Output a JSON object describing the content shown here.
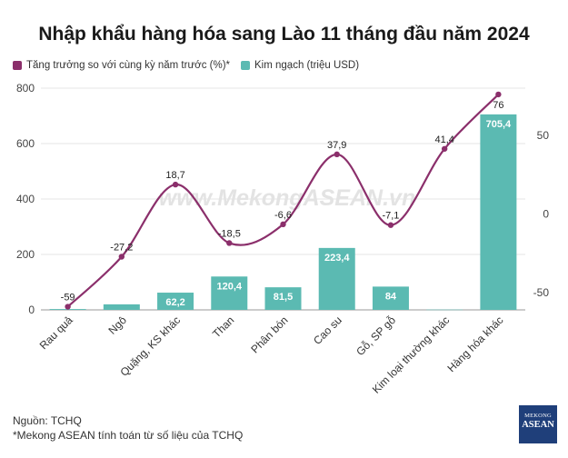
{
  "title": "Nhập khẩu hàng hóa sang Lào 11 tháng đầu năm 2024",
  "legend": [
    {
      "label": "Tăng trưởng so với cùng kỳ năm trước (%)*",
      "color": "#8b2f6b"
    },
    {
      "label": "Kim ngạch (triệu USD)",
      "color": "#5bbab2"
    }
  ],
  "watermark": "www.MekongASEAN.vn",
  "source": "Nguồn: TCHQ",
  "note": "*Mekong ASEAN tính toán từ số liệu của TCHQ",
  "logo": {
    "line1": "MEKONG",
    "line2": "ASEAN"
  },
  "chart_data": {
    "type": "bar",
    "categories": [
      "Rau quả",
      "Ngô",
      "Quặng, KS khác",
      "Than",
      "Phân bón",
      "Cao su",
      "Gỗ, SP gỗ",
      "Kim loại thường khác",
      "Hàng hóa khác"
    ],
    "series": [
      {
        "name": "Kim ngạch (triệu USD)",
        "type": "bar",
        "axis": "left",
        "color": "#5bbab2",
        "values": [
          3,
          20,
          62.2,
          120.4,
          81.5,
          223.4,
          84,
          1,
          705.4
        ],
        "labels": [
          "",
          "",
          "62,2",
          "120,4",
          "81,5",
          "223,4",
          "84",
          "",
          "705,4"
        ]
      },
      {
        "name": "Tăng trưởng so với cùng kỳ năm trước (%)*",
        "type": "line",
        "axis": "right",
        "color": "#8b2f6b",
        "values": [
          -59,
          -27.2,
          18.7,
          -18.5,
          -6.6,
          37.9,
          -7.1,
          41.4,
          76
        ],
        "labels": [
          "-59",
          "-27,2",
          "18,7",
          "-18,5",
          "-6,6",
          "37,9",
          "-7,1",
          "41,4",
          "76"
        ]
      }
    ],
    "left_axis": {
      "ylim": [
        0,
        800
      ],
      "ticks": [
        0,
        200,
        400,
        600,
        800
      ]
    },
    "right_axis": {
      "ylim": [
        -61,
        80
      ],
      "ticks": [
        -50,
        0,
        50
      ]
    },
    "grid": true,
    "legend_position": "top-left"
  }
}
